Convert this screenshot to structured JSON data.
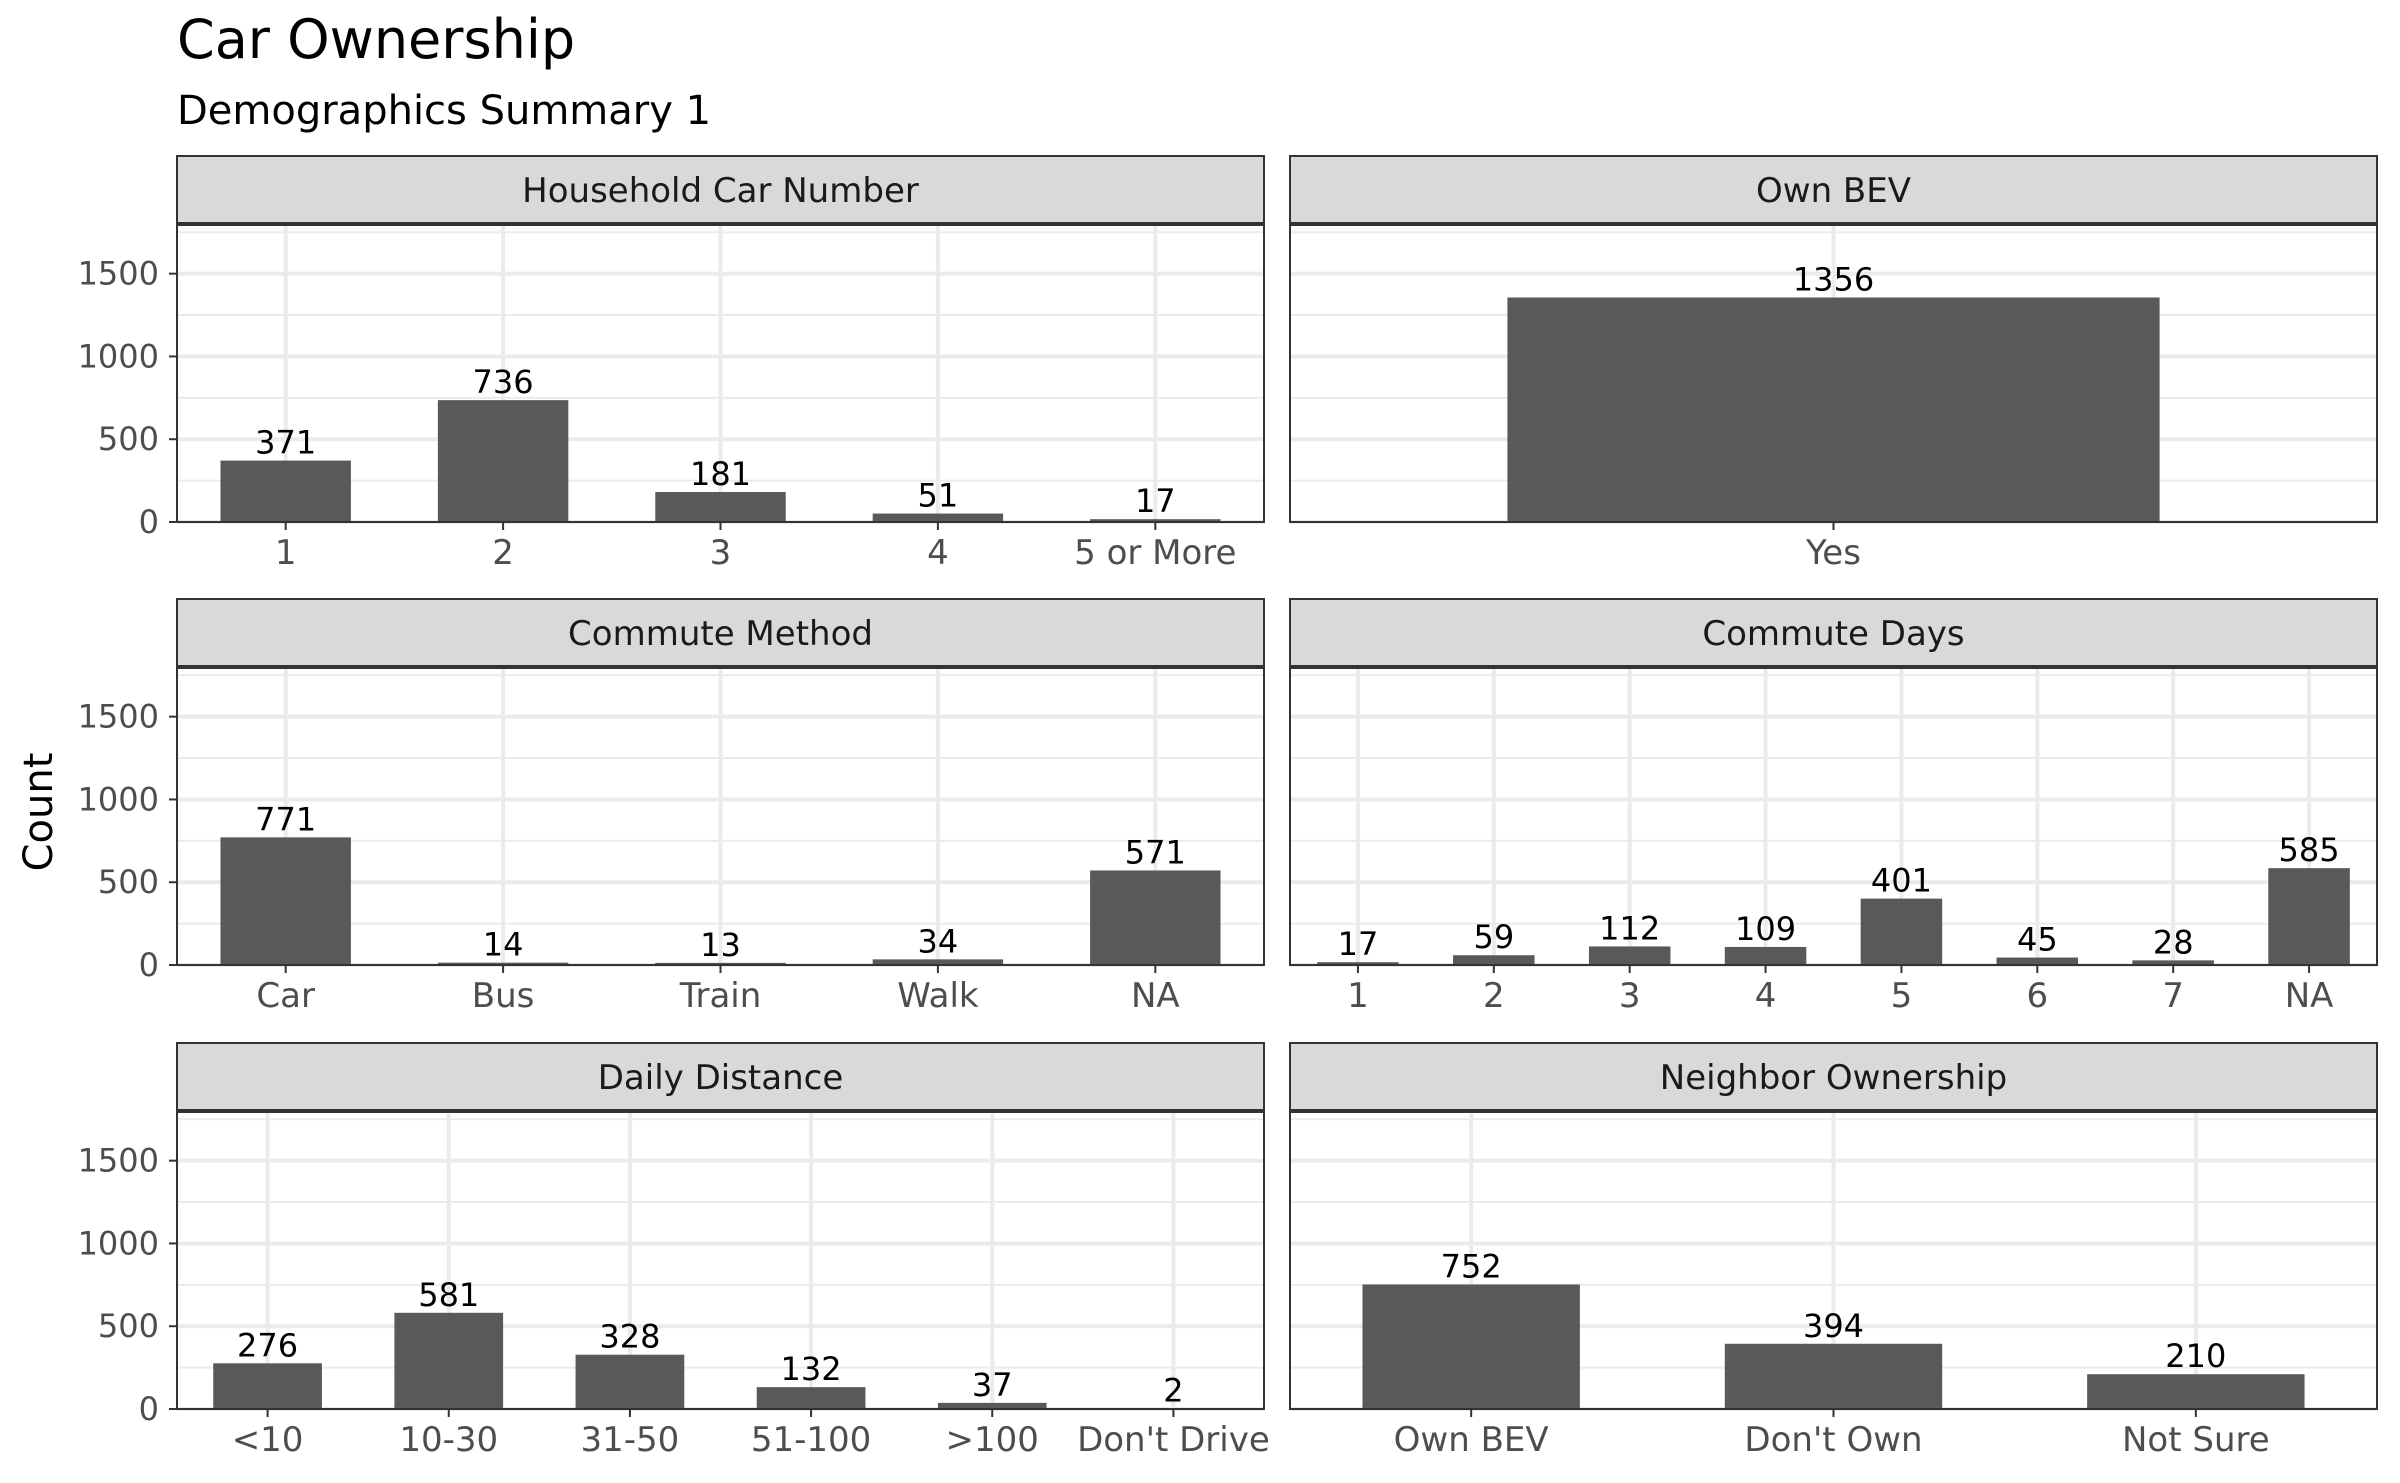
{
  "chart_data": {
    "type": "bar",
    "title": "Car Ownership",
    "subtitle": "Demographics Summary 1",
    "ylabel": "Count",
    "ylim": [
      0,
      1800
    ],
    "yticks": [
      0,
      500,
      1000,
      1500
    ],
    "grid": true,
    "panels": [
      {
        "title": "Household Car Number",
        "categories": [
          "1",
          "2",
          "3",
          "4",
          "5 or More"
        ],
        "values": [
          371,
          736,
          181,
          51,
          17
        ],
        "labels": [
          "371",
          "736",
          "181",
          "51",
          "17"
        ]
      },
      {
        "title": "Own BEV",
        "categories": [
          "Yes"
        ],
        "values": [
          1356
        ],
        "labels": [
          "1356"
        ]
      },
      {
        "title": "Commute Method",
        "categories": [
          "Car",
          "Bus",
          "Train",
          "Walk",
          "NA"
        ],
        "values": [
          771,
          14,
          13,
          34,
          571
        ],
        "labels": [
          "771",
          "14",
          "13",
          "34",
          "571"
        ]
      },
      {
        "title": "Commute Days",
        "categories": [
          "1",
          "2",
          "3",
          "4",
          "5",
          "6",
          "7",
          "NA"
        ],
        "values": [
          17,
          59,
          112,
          109,
          401,
          45,
          28,
          585
        ],
        "labels": [
          "17",
          "59",
          "112",
          "109",
          "401",
          "45",
          "28",
          "585"
        ]
      },
      {
        "title": "Daily Distance",
        "categories": [
          "<10",
          "10-30",
          "31-50",
          "51-100",
          ">100",
          "Don't Drive"
        ],
        "values": [
          276,
          581,
          328,
          132,
          37,
          2
        ],
        "labels": [
          "276",
          "581",
          "328",
          "132",
          "37",
          "2"
        ]
      },
      {
        "title": "Neighbor Ownership",
        "categories": [
          "Own BEV",
          "Don't Own",
          "Not Sure"
        ],
        "values": [
          752,
          394,
          210
        ],
        "labels": [
          "752",
          "394",
          "210"
        ]
      }
    ]
  }
}
